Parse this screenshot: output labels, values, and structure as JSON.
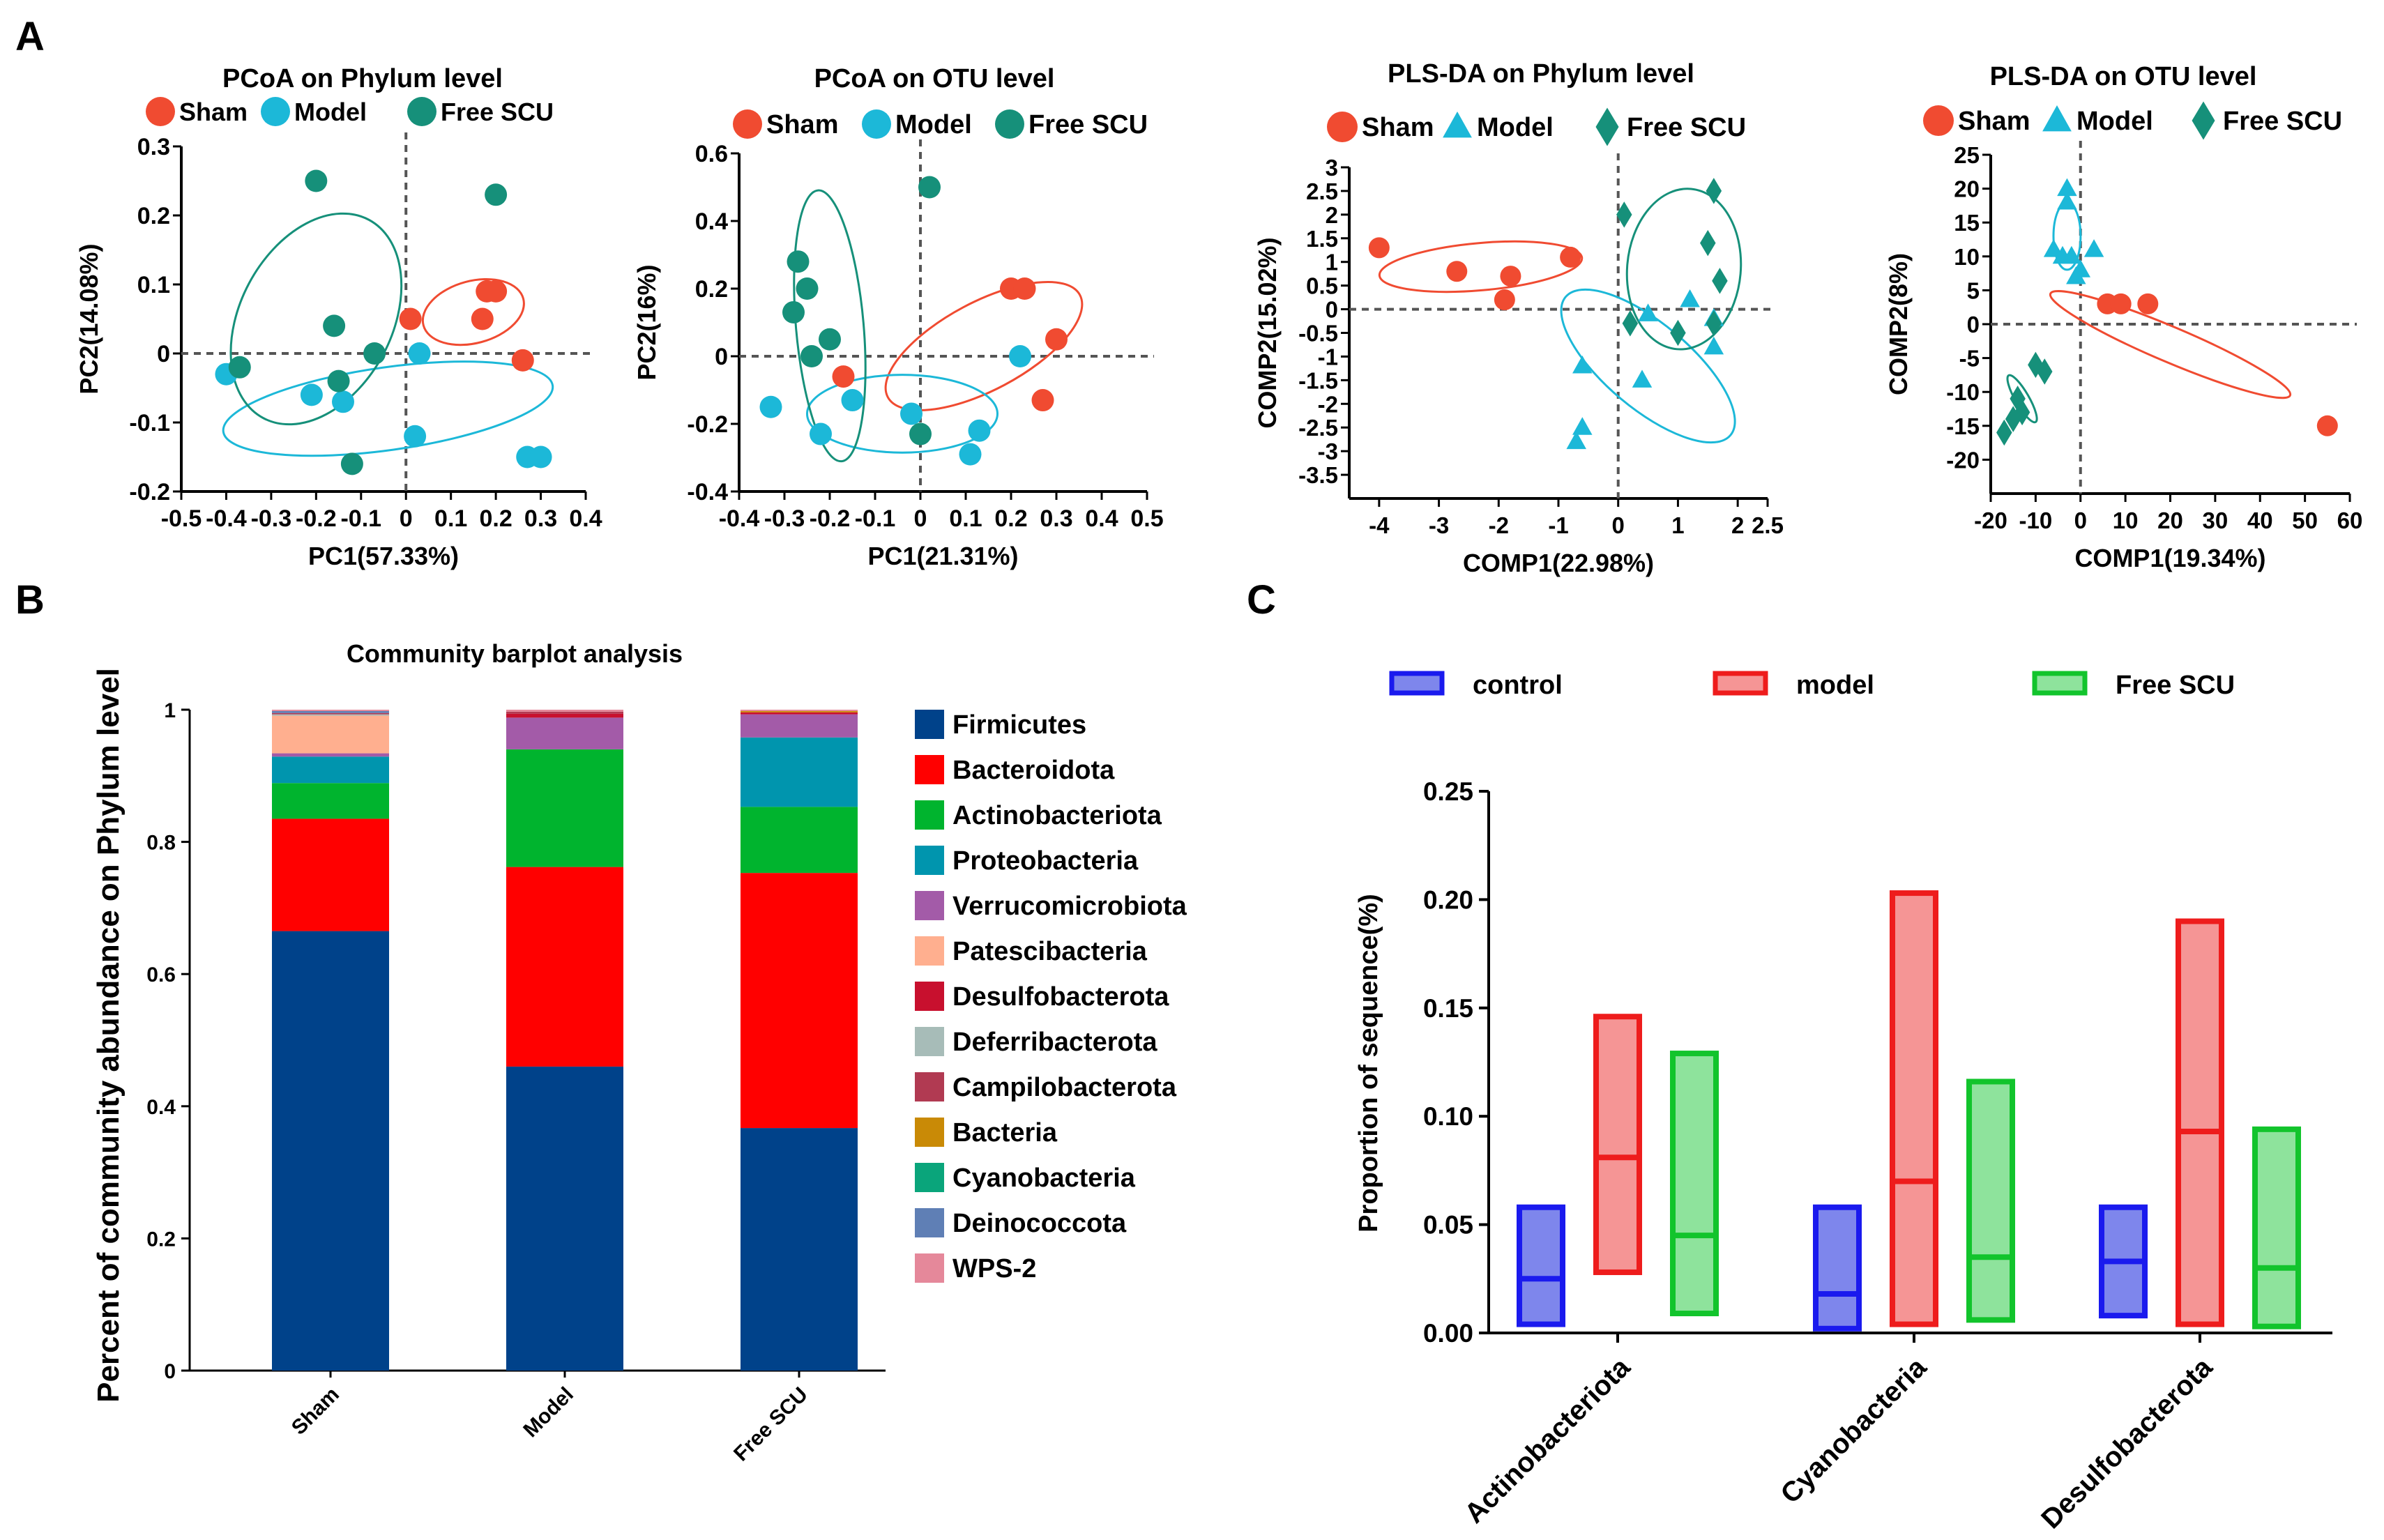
{
  "panel_labels": {
    "a": "A",
    "b": "B",
    "c": "C"
  },
  "colors": {
    "sham": "#F04B31",
    "model": "#1CB8D8",
    "scu": "#16907A",
    "control_box": "#1A1AEE",
    "model_box": "#EE1C1C",
    "scu_box": "#12C42C"
  },
  "chart_data": [
    {
      "id": "pcoa-phylum",
      "type": "scatter",
      "title": "PCoA on Phylum level",
      "xlabel": "PC1(57.33%)",
      "ylabel": "PC2(14.08%)",
      "xlim": [
        -0.5,
        0.4
      ],
      "ylim": [
        -0.2,
        0.3
      ],
      "xticks": [
        -0.5,
        -0.4,
        -0.3,
        -0.2,
        -0.1,
        0,
        0.1,
        0.2,
        0.3,
        0.4
      ],
      "xticklabels": [
        "-0.5",
        "-0.4",
        "-0.3",
        "-0.2",
        "-0.1",
        "0",
        "0.1",
        "0.2",
        "0.3",
        "0.4"
      ],
      "yticks": [
        -0.2,
        -0.1,
        0,
        0.1,
        0.2,
        0.3
      ],
      "yticklabels": [
        "-0.2",
        "-0.1",
        "0",
        "0.1",
        "0.2",
        "0.3"
      ],
      "refline": {
        "x": 0,
        "y": 0
      },
      "legend": [
        "Sham",
        "Model",
        "Free SCU"
      ],
      "series": [
        {
          "name": "Sham",
          "color": "#F04B31",
          "marker": "circle",
          "points": [
            [
              0.01,
              0.05
            ],
            [
              0.17,
              0.05
            ],
            [
              0.18,
              0.09
            ],
            [
              0.2,
              0.09
            ],
            [
              0.26,
              -0.01
            ]
          ],
          "ellipse": {
            "cx": 0.15,
            "cy": 0.06,
            "rx": 0.115,
            "ry": 0.045,
            "angle": -15
          }
        },
        {
          "name": "Model",
          "color": "#1CB8D8",
          "marker": "circle",
          "points": [
            [
              -0.4,
              -0.03
            ],
            [
              -0.21,
              -0.06
            ],
            [
              -0.14,
              -0.07
            ],
            [
              0.03,
              0.0
            ],
            [
              0.02,
              -0.12
            ],
            [
              0.27,
              -0.15
            ],
            [
              0.3,
              -0.15
            ]
          ],
          "ellipse": {
            "cx": -0.04,
            "cy": -0.08,
            "rx": 0.37,
            "ry": 0.06,
            "angle": -8
          }
        },
        {
          "name": "Free SCU",
          "color": "#16907A",
          "marker": "circle",
          "points": [
            [
              -0.2,
              0.25
            ],
            [
              -0.16,
              0.04
            ],
            [
              -0.15,
              -0.04
            ],
            [
              -0.12,
              -0.16
            ],
            [
              -0.07,
              0.0
            ],
            [
              -0.37,
              -0.02
            ],
            [
              0.2,
              0.23
            ]
          ],
          "ellipse": {
            "cx": -0.2,
            "cy": 0.05,
            "rx": 0.25,
            "ry": 0.11,
            "angle": -62
          }
        }
      ]
    },
    {
      "id": "pcoa-otu",
      "type": "scatter",
      "title": "PCoA on OTU level",
      "xlabel": "PC1(21.31%)",
      "ylabel": "PC2(16%)",
      "xlim": [
        -0.4,
        0.5
      ],
      "ylim": [
        -0.4,
        0.6
      ],
      "xticks": [
        -0.4,
        -0.3,
        -0.2,
        -0.1,
        0,
        0.1,
        0.2,
        0.3,
        0.4,
        0.5
      ],
      "xticklabels": [
        "-0.4",
        "-0.3",
        "-0.2",
        "-0.1",
        "0",
        "0.1",
        "0.2",
        "0.3",
        "0.4",
        "0.5"
      ],
      "yticks": [
        -0.4,
        -0.2,
        0,
        0.2,
        0.4,
        0.6
      ],
      "yticklabels": [
        "-0.4",
        "-0.2",
        "0",
        "0.2",
        "0.4",
        "0.6"
      ],
      "refline": {
        "x": 0,
        "y": 0
      },
      "legend": [
        "Sham",
        "Model",
        "Free SCU"
      ],
      "series": [
        {
          "name": "Sham",
          "color": "#F04B31",
          "marker": "circle",
          "points": [
            [
              -0.17,
              -0.06
            ],
            [
              0.2,
              0.2
            ],
            [
              0.23,
              0.2
            ],
            [
              0.3,
              0.05
            ],
            [
              0.27,
              -0.13
            ]
          ],
          "ellipse": {
            "cx": 0.14,
            "cy": 0.03,
            "rx": 0.24,
            "ry": 0.13,
            "angle": -28
          }
        },
        {
          "name": "Model",
          "color": "#1CB8D8",
          "marker": "circle",
          "points": [
            [
              -0.33,
              -0.15
            ],
            [
              -0.22,
              -0.23
            ],
            [
              -0.15,
              -0.13
            ],
            [
              -0.02,
              -0.17
            ],
            [
              0.13,
              -0.22
            ],
            [
              0.11,
              -0.29
            ],
            [
              0.22,
              0.0
            ]
          ],
          "ellipse": {
            "cx": -0.04,
            "cy": -0.17,
            "rx": 0.21,
            "ry": 0.115,
            "angle": 0
          }
        },
        {
          "name": "Free SCU",
          "color": "#16907A",
          "marker": "circle",
          "points": [
            [
              -0.27,
              0.28
            ],
            [
              -0.25,
              0.2
            ],
            [
              -0.28,
              0.13
            ],
            [
              -0.2,
              0.05
            ],
            [
              -0.24,
              0.0
            ],
            [
              0.02,
              0.5
            ],
            [
              0.0,
              -0.23
            ]
          ],
          "ellipse": {
            "cx": -0.2,
            "cy": 0.09,
            "rx": 0.3,
            "ry": 0.1,
            "angle": -95
          }
        }
      ]
    },
    {
      "id": "plsda-phylum",
      "type": "scatter",
      "title": "PLS-DA on Phylum level",
      "xlabel": "COMP1(22.98%)",
      "ylabel": "COMP2(15.02%)",
      "xlim": [
        -4.5,
        2.5
      ],
      "ylim": [
        -4,
        3
      ],
      "xticks": [
        -4,
        -3,
        -2,
        -1,
        0,
        1,
        2,
        2.5
      ],
      "xticklabels": [
        "-4",
        "-3",
        "-2",
        "-1",
        "0",
        "1",
        "2",
        "2.5"
      ],
      "yticks": [
        -3.5,
        -3,
        -2.5,
        -2,
        -1.5,
        -1,
        -0.5,
        0,
        0.5,
        1,
        1.5,
        2,
        2.5,
        3
      ],
      "yticklabels": [
        "-3.5",
        "-3",
        "-2.5",
        "-2",
        "-1.5",
        "-1",
        "-0.5",
        "0",
        "0.5",
        "1",
        "1.5",
        "2",
        "2.5",
        "3"
      ],
      "refline": {
        "x": 0,
        "y": 0
      },
      "legend": [
        "Sham",
        "Model",
        "Free SCU"
      ],
      "series": [
        {
          "name": "Sham",
          "color": "#F04B31",
          "marker": "circle",
          "points": [
            [
              -4.0,
              1.3
            ],
            [
              -2.7,
              0.8
            ],
            [
              -1.8,
              0.7
            ],
            [
              -1.9,
              0.2
            ],
            [
              -0.8,
              1.1
            ]
          ],
          "ellipse": {
            "cx": -2.3,
            "cy": 0.9,
            "rx": 1.7,
            "ry": 0.5,
            "angle": -5
          }
        },
        {
          "name": "Model",
          "color": "#1CB8D8",
          "marker": "triangle",
          "points": [
            [
              -0.6,
              -1.2
            ],
            [
              -0.6,
              -2.5
            ],
            [
              -0.7,
              -2.8
            ],
            [
              0.4,
              -1.5
            ],
            [
              0.5,
              -0.1
            ],
            [
              1.2,
              0.2
            ],
            [
              1.6,
              -0.2
            ],
            [
              1.6,
              -0.8
            ]
          ],
          "ellipse": {
            "cx": 0.5,
            "cy": -1.2,
            "rx": 1.8,
            "ry": 0.9,
            "angle": 40
          }
        },
        {
          "name": "Free SCU",
          "color": "#16907A",
          "marker": "diamond",
          "points": [
            [
              0.1,
              2.0
            ],
            [
              1.6,
              2.5
            ],
            [
              1.5,
              1.4
            ],
            [
              1.7,
              0.6
            ],
            [
              0.2,
              -0.3
            ],
            [
              1.0,
              -0.5
            ],
            [
              1.6,
              -0.3
            ]
          ],
          "ellipse": {
            "cx": 1.1,
            "cy": 0.85,
            "rx": 0.95,
            "ry": 1.7,
            "angle": 5
          }
        }
      ]
    },
    {
      "id": "plsda-otu",
      "type": "scatter",
      "title": "PLS-DA on OTU level",
      "xlabel": "COMP1(19.34%)",
      "ylabel": "COMP2(8%)",
      "xlim": [
        -20,
        60
      ],
      "ylim": [
        -25,
        25
      ],
      "xticks": [
        -20,
        -10,
        0,
        10,
        20,
        30,
        40,
        50,
        60
      ],
      "xticklabels": [
        "-20",
        "-10",
        "0",
        "10",
        "20",
        "30",
        "40",
        "50",
        "60"
      ],
      "yticks": [
        -20,
        -15,
        -10,
        -5,
        0,
        5,
        10,
        15,
        20,
        25
      ],
      "yticklabels": [
        "-20",
        "-15",
        "-10",
        "-5",
        "0",
        "5",
        "10",
        "15",
        "20",
        "25"
      ],
      "refline": {
        "x": 0,
        "y": 0
      },
      "legend": [
        "Sham",
        "Model",
        "Free SCU"
      ],
      "series": [
        {
          "name": "Sham",
          "color": "#F04B31",
          "marker": "circle",
          "points": [
            [
              6,
              3
            ],
            [
              9,
              3
            ],
            [
              15,
              3
            ],
            [
              55,
              -15
            ]
          ],
          "ellipse": {
            "cx": 20,
            "cy": -3,
            "rx": 29,
            "ry": 2.6,
            "angle": 23
          }
        },
        {
          "name": "Model",
          "color": "#1CB8D8",
          "marker": "triangle",
          "points": [
            [
              -3,
              20
            ],
            [
              -3,
              18
            ],
            [
              -6,
              11
            ],
            [
              -2,
              10
            ],
            [
              -1,
              7
            ],
            [
              0,
              8
            ],
            [
              3,
              11
            ],
            [
              -4,
              10
            ]
          ],
          "ellipse": {
            "cx": -3,
            "cy": 13,
            "rx": 7.5,
            "ry": 2.0,
            "angle": 90
          }
        },
        {
          "name": "Free SCU",
          "color": "#16907A",
          "marker": "diamond",
          "points": [
            [
              -17,
              -16
            ],
            [
              -15,
              -14
            ],
            [
              -14,
              -11
            ],
            [
              -10,
              -6
            ],
            [
              -8,
              -7
            ],
            [
              -13,
              -13
            ]
          ],
          "ellipse": {
            "cx": -13,
            "cy": -11,
            "rx": 6,
            "ry": 1.0,
            "angle": 60
          }
        }
      ]
    },
    {
      "id": "community-barplot",
      "type": "bar",
      "stacked": true,
      "title": "Community barplot analysis",
      "xlabel": "",
      "ylabel": "Percent of community abundance on Phylum level",
      "ylim": [
        0,
        1
      ],
      "yticks": [
        0,
        0.2,
        0.4,
        0.6,
        0.8,
        1
      ],
      "yticklabels": [
        "0",
        "0.2",
        "0.4",
        "0.6",
        "0.8",
        "1"
      ],
      "categories": [
        "Sham",
        "Model",
        "Free SCU"
      ],
      "series": [
        {
          "name": "Firmicutes",
          "color": "#00428A",
          "values": [
            0.665,
            0.46,
            0.367
          ]
        },
        {
          "name": "Bacteroidota",
          "color": "#FF0000",
          "values": [
            0.17,
            0.302,
            0.386
          ]
        },
        {
          "name": "Actinobacteriota",
          "color": "#00B42E",
          "values": [
            0.054,
            0.178,
            0.1
          ]
        },
        {
          "name": "Proteobacteria",
          "color": "#0095AE",
          "values": [
            0.04,
            0.0,
            0.105
          ]
        },
        {
          "name": "Verrucomicrobiota",
          "color": "#A35BA8",
          "values": [
            0.005,
            0.048,
            0.035
          ]
        },
        {
          "name": "Patescibacteria",
          "color": "#FFAF8F",
          "values": [
            0.057,
            0.0,
            0.0
          ]
        },
        {
          "name": "Desulfobacterota",
          "color": "#C8102E",
          "values": [
            0.0,
            0.006,
            0.003
          ]
        },
        {
          "name": "Deferribacterota",
          "color": "#A7BCB8",
          "values": [
            0.002,
            0.0,
            0.0
          ]
        },
        {
          "name": "Campilobacterota",
          "color": "#B13A52",
          "values": [
            0.002,
            0.003,
            0.0
          ]
        },
        {
          "name": "Bacteria",
          "color": "#C98A06",
          "values": [
            0.0,
            0.0,
            0.002
          ]
        },
        {
          "name": "Cyanobacteria",
          "color": "#0AA57B",
          "values": [
            0.0,
            0.0,
            0.0
          ]
        },
        {
          "name": "Deinococcota",
          "color": "#5F7FB5",
          "values": [
            0.003,
            0.0,
            0.0
          ]
        },
        {
          "name": "WPS-2",
          "color": "#E5889A",
          "values": [
            0.002,
            0.003,
            0.002
          ]
        }
      ]
    },
    {
      "id": "proportion-floating-bars",
      "type": "bar",
      "subtype": "floating-min-max-mean",
      "title": "",
      "xlabel": "",
      "ylabel": "Proportion of sequence(%)",
      "ylim": [
        0,
        0.25
      ],
      "yticks": [
        0,
        0.05,
        0.1,
        0.15,
        0.2,
        0.25
      ],
      "yticklabels": [
        "0.00",
        "0.05",
        "0.10",
        "0.15",
        "0.20",
        "0.25"
      ],
      "categories": [
        "Actinobacteriota",
        "Cyanobacteria",
        "Desulfobacterota"
      ],
      "legend": [
        "control",
        "model",
        "Free SCU"
      ],
      "series": [
        {
          "name": "control",
          "color": "#1A1AEE",
          "fill": "#7E86EC",
          "min": [
            0.004,
            0.002,
            0.008
          ],
          "max": [
            0.058,
            0.058,
            0.058
          ],
          "mean": [
            0.025,
            0.018,
            0.033
          ]
        },
        {
          "name": "model",
          "color": "#EE1C1C",
          "fill": "#F59595",
          "min": [
            0.028,
            0.004,
            0.004
          ],
          "max": [
            0.146,
            0.203,
            0.19
          ],
          "mean": [
            0.081,
            0.07,
            0.093
          ]
        },
        {
          "name": "Free SCU",
          "color": "#12C42C",
          "fill": "#8EE39C",
          "min": [
            0.009,
            0.006,
            0.003
          ],
          "max": [
            0.129,
            0.116,
            0.094
          ],
          "mean": [
            0.045,
            0.035,
            0.03
          ]
        }
      ]
    }
  ]
}
